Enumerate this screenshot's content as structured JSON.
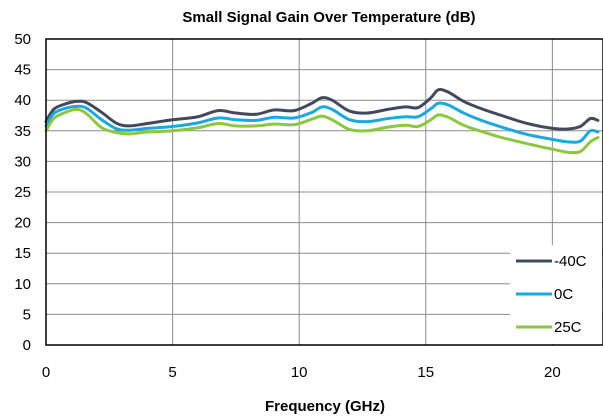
{
  "chart_data": {
    "type": "line",
    "title": "Small Signal Gain Over Temperature (dB)",
    "xlabel": "Frequency (GHz)",
    "ylabel": "",
    "xlim": [
      0,
      22
    ],
    "ylim": [
      0,
      50
    ],
    "xticks": [
      0,
      5,
      10,
      15,
      20
    ],
    "yticks": [
      0,
      5,
      10,
      15,
      20,
      25,
      30,
      35,
      40,
      45,
      50
    ],
    "grid": true,
    "legend_position": "bottom-right",
    "series": [
      {
        "name": "-40C",
        "color": "#404a5c",
        "x": [
          0,
          0.3,
          0.7,
          1.2,
          1.6,
          2.2,
          2.8,
          3.3,
          4,
          5,
          6,
          6.8,
          7.5,
          8.3,
          9,
          9.8,
          10.5,
          10.9,
          11.3,
          12,
          12.7,
          13.5,
          14.2,
          14.7,
          15.2,
          15.5,
          15.9,
          16.5,
          17.2,
          18,
          19,
          20,
          20.6,
          21.1,
          21.5,
          21.8
        ],
        "y": [
          36.5,
          38.5,
          39.3,
          39.8,
          39.6,
          38,
          36.2,
          35.8,
          36.2,
          36.8,
          37.3,
          38.3,
          37.9,
          37.7,
          38.4,
          38.3,
          39.5,
          40.4,
          40,
          38.2,
          37.9,
          38.5,
          38.9,
          38.8,
          40.4,
          41.7,
          41.3,
          39.8,
          38.6,
          37.5,
          36.2,
          35.4,
          35.3,
          35.7,
          37,
          36.7
        ]
      },
      {
        "name": "0C",
        "color": "#1aa8e0",
        "x": [
          0,
          0.3,
          0.7,
          1.2,
          1.6,
          2.2,
          2.8,
          3.3,
          4,
          5,
          6,
          6.8,
          7.5,
          8.3,
          9,
          9.8,
          10.5,
          10.9,
          11.3,
          12,
          12.7,
          13.5,
          14.2,
          14.7,
          15.2,
          15.5,
          15.9,
          16.5,
          17.2,
          18,
          19,
          20,
          20.6,
          21.1,
          21.5,
          21.8
        ],
        "y": [
          35.8,
          37.8,
          38.6,
          39,
          38.7,
          36.8,
          35.3,
          35.1,
          35.4,
          35.7,
          36.3,
          37.1,
          36.8,
          36.7,
          37.2,
          37.1,
          38,
          38.9,
          38.5,
          36.8,
          36.5,
          37,
          37.3,
          37.3,
          38.6,
          39.5,
          39.2,
          37.9,
          36.7,
          35.6,
          34.4,
          33.6,
          33.2,
          33.3,
          35,
          34.8
        ]
      },
      {
        "name": "25C",
        "color": "#8dc63f",
        "x": [
          0,
          0.3,
          0.7,
          1.2,
          1.6,
          2.2,
          2.8,
          3.3,
          4,
          5,
          6,
          6.8,
          7.5,
          8.3,
          9,
          9.8,
          10.5,
          10.9,
          11.3,
          12,
          12.7,
          13.5,
          14.2,
          14.7,
          15.2,
          15.5,
          15.9,
          16.5,
          17.2,
          18,
          19,
          20,
          20.6,
          21.1,
          21.5,
          21.8
        ],
        "y": [
          35,
          37,
          37.9,
          38.5,
          37.8,
          35.5,
          34.7,
          34.5,
          34.8,
          35,
          35.5,
          36.2,
          35.8,
          35.8,
          36.1,
          36,
          36.9,
          37.4,
          36.8,
          35.2,
          35,
          35.6,
          35.9,
          35.7,
          36.8,
          37.6,
          37.2,
          35.9,
          34.9,
          33.9,
          32.9,
          32,
          31.5,
          31.6,
          33.2,
          33.9
        ]
      }
    ]
  }
}
